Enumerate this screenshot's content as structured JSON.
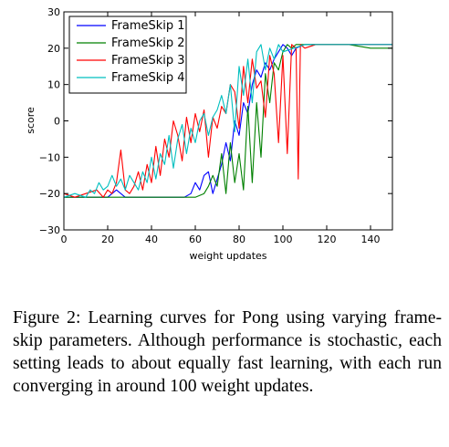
{
  "chart_data": {
    "type": "line",
    "xlabel": "weight updates",
    "ylabel": "score",
    "xlim": [
      0,
      150
    ],
    "ylim": [
      -30,
      30
    ],
    "xticks": [
      0,
      20,
      40,
      60,
      80,
      100,
      120,
      140
    ],
    "yticks": [
      -30,
      -20,
      -10,
      0,
      10,
      20,
      30
    ],
    "grid": false,
    "legend_position": "top-left",
    "series": [
      {
        "name": "FrameSkip 1",
        "color": "#0000ff",
        "x": [
          0,
          10,
          20,
          24,
          28,
          32,
          36,
          40,
          44,
          48,
          52,
          55,
          58,
          60,
          62,
          64,
          66,
          68,
          70,
          72,
          74,
          76,
          78,
          80,
          82,
          84,
          86,
          88,
          90,
          92,
          94,
          96,
          98,
          100,
          102,
          104,
          106,
          110,
          120,
          130,
          140,
          150
        ],
        "y": [
          -21,
          -21,
          -21,
          -19,
          -21,
          -21,
          -21,
          -21,
          -21,
          -21,
          -21,
          -21,
          -20,
          -17,
          -19,
          -15,
          -14,
          -20,
          -16,
          -12,
          -6,
          -11,
          0,
          -4,
          5,
          2,
          10,
          14,
          12,
          16,
          14,
          17,
          19,
          21,
          20,
          18,
          20,
          21,
          21,
          21,
          21,
          21
        ]
      },
      {
        "name": "FrameSkip 2",
        "color": "#008000",
        "x": [
          0,
          10,
          20,
          30,
          40,
          50,
          60,
          64,
          66,
          68,
          70,
          72,
          74,
          76,
          78,
          80,
          82,
          84,
          86,
          88,
          90,
          92,
          94,
          96,
          98,
          100,
          102,
          104,
          106,
          110,
          120,
          130,
          140,
          150
        ],
        "y": [
          -21,
          -21,
          -21,
          -21,
          -21,
          -21,
          -21,
          -20,
          -18,
          -15,
          -18,
          -9,
          -20,
          -6,
          -17,
          -9,
          -19,
          4,
          -17,
          5,
          -10,
          13,
          5,
          16,
          14,
          19,
          21,
          20,
          21,
          21,
          21,
          21,
          20,
          20
        ]
      },
      {
        "name": "FrameSkip 3",
        "color": "#ff0000",
        "x": [
          0,
          5,
          10,
          15,
          18,
          20,
          22,
          24,
          26,
          28,
          30,
          32,
          34,
          36,
          38,
          40,
          42,
          44,
          46,
          48,
          50,
          52,
          54,
          56,
          58,
          60,
          62,
          64,
          66,
          68,
          70,
          72,
          74,
          76,
          78,
          80,
          82,
          84,
          86,
          88,
          90,
          92,
          94,
          96,
          98,
          100,
          102,
          104,
          106,
          107,
          108,
          110,
          115,
          120,
          130,
          140,
          150
        ],
        "y": [
          -20,
          -21,
          -20,
          -19,
          -21,
          -19,
          -20,
          -17,
          -8,
          -19,
          -20,
          -18,
          -14,
          -19,
          -12,
          -17,
          -7,
          -15,
          -5,
          -10,
          0,
          -4,
          -11,
          1,
          -6,
          2,
          -3,
          3,
          -10,
          1,
          -2,
          4,
          2,
          10,
          8,
          -2,
          15,
          5,
          17,
          9,
          11,
          1,
          18,
          13,
          -6,
          18,
          -9,
          21,
          20,
          -16,
          21,
          20,
          21,
          21,
          21,
          21,
          21
        ]
      },
      {
        "name": "FrameSkip 4",
        "color": "#00bfbf",
        "x": [
          0,
          5,
          10,
          12,
          14,
          16,
          18,
          20,
          22,
          24,
          26,
          28,
          30,
          32,
          34,
          36,
          38,
          40,
          42,
          44,
          46,
          48,
          50,
          52,
          54,
          56,
          58,
          60,
          62,
          64,
          66,
          68,
          70,
          72,
          74,
          76,
          78,
          80,
          82,
          84,
          86,
          88,
          90,
          92,
          94,
          96,
          98,
          100,
          105,
          110,
          120,
          130,
          140,
          150
        ],
        "y": [
          -21,
          -20,
          -21,
          -19,
          -20,
          -17,
          -19,
          -18,
          -15,
          -18,
          -16,
          -19,
          -15,
          -17,
          -19,
          -14,
          -17,
          -10,
          -16,
          -9,
          -12,
          -4,
          -13,
          -5,
          -1,
          -9,
          -2,
          -6,
          0,
          2,
          -4,
          1,
          3,
          7,
          2,
          10,
          -3,
          15,
          7,
          17,
          5,
          19,
          21,
          14,
          20,
          17,
          21,
          19,
          20,
          21,
          21,
          21,
          21,
          21
        ]
      }
    ]
  },
  "caption": "Figure 2: Learning curves for Pong using varying frame-skip parameters. Although performance is stochastic, each setting leads to about equally fast learning, with each run converging in around 100 weight updates."
}
